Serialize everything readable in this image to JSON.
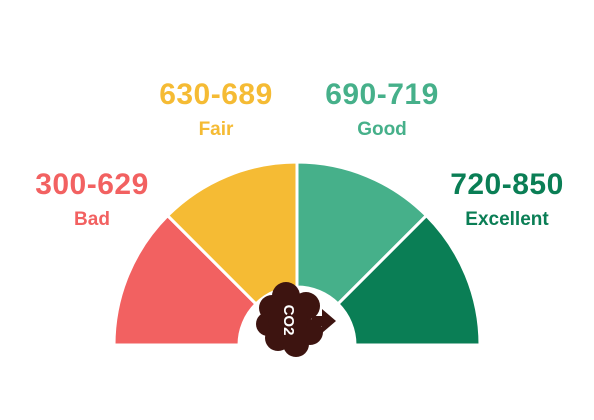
{
  "gauge": {
    "bands": [
      {
        "range": "300-629",
        "label": "Bad",
        "color": "#f26161"
      },
      {
        "range": "630-689",
        "label": "Fair",
        "color": "#f5bb34"
      },
      {
        "range": "690-719",
        "label": "Good",
        "color": "#46b08a"
      },
      {
        "range": "720-850",
        "label": "Excellent",
        "color": "#0a7e55"
      }
    ],
    "center_icon": "co2-cloud-icon",
    "center_icon_text": "CO2"
  }
}
